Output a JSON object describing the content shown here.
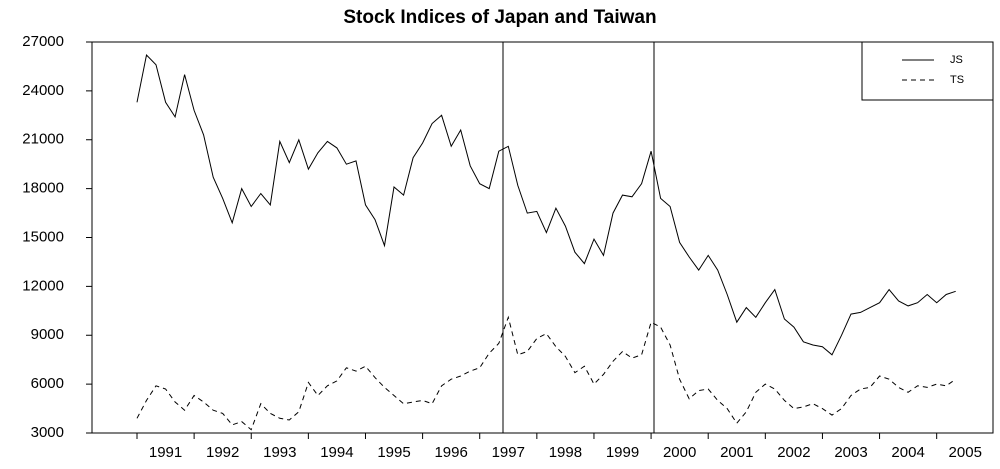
{
  "chart_data": {
    "type": "line",
    "title": "Stock Indices of Japan and Taiwan",
    "categories": [
      "1991",
      null,
      null,
      null,
      null,
      null,
      "1992",
      null,
      null,
      null,
      null,
      null,
      "1993",
      null,
      null,
      null,
      null,
      null,
      "1994",
      null,
      null,
      null,
      null,
      null,
      "1995",
      null,
      null,
      null,
      null,
      null,
      "1996",
      null,
      null,
      null,
      null,
      null,
      "1997",
      null,
      null,
      null,
      null,
      null,
      "1998",
      null,
      null,
      null,
      null,
      null,
      "1999",
      null,
      null,
      null,
      null,
      null,
      "2000",
      null,
      null,
      null,
      null,
      null,
      "2001",
      null,
      null,
      null,
      null,
      null,
      "2002",
      null,
      null,
      null,
      null,
      null,
      "2003",
      null,
      null,
      null,
      null,
      null,
      "2004",
      null,
      null,
      null,
      null,
      null,
      "2005",
      null,
      null
    ],
    "series": [
      {
        "name": "JS",
        "color": "#000000",
        "line_style": "solid",
        "values": [
          23300,
          26200,
          25600,
          23300,
          22400,
          25000,
          22800,
          21300,
          18700,
          17400,
          15900,
          18000,
          16900,
          17700,
          17000,
          20900,
          19600,
          21000,
          19200,
          20200,
          20900,
          20500,
          19500,
          19700,
          17000,
          16100,
          14500,
          18100,
          17600,
          19900,
          20800,
          22000,
          22500,
          20600,
          21600,
          19400,
          18300,
          18000,
          20300,
          20600,
          18200,
          16500,
          16600,
          15300,
          16800,
          15700,
          14100,
          13400,
          14900,
          13900,
          16500,
          17600,
          17500,
          18300,
          20300,
          17400,
          16900,
          14700,
          13800,
          13000,
          13900,
          13000,
          11500,
          9800,
          10700,
          10100,
          11000,
          11800,
          10000,
          9500,
          8600,
          8400,
          8300,
          7800,
          9000,
          10300,
          10400,
          10700,
          11000,
          11800,
          11100,
          10800,
          11000,
          11500,
          11000,
          11500,
          11700
        ]
      },
      {
        "name": "TS",
        "color": "#000000",
        "line_style": "dashed",
        "values": [
          3900,
          5000,
          5900,
          5700,
          4900,
          4400,
          5300,
          4900,
          4400,
          4200,
          3500,
          3700,
          3200,
          4800,
          4200,
          3900,
          3800,
          4300,
          6100,
          5300,
          5900,
          6200,
          7000,
          6800,
          7100,
          6400,
          5800,
          5300,
          4800,
          4900,
          5000,
          4800,
          5900,
          6300,
          6500,
          6800,
          7000,
          7900,
          8500,
          10100,
          7800,
          8000,
          8800,
          9100,
          8300,
          7700,
          6700,
          7100,
          6000,
          6600,
          7400,
          8000,
          7600,
          7800,
          9800,
          9500,
          8400,
          6300,
          5100,
          5600,
          5700,
          5000,
          4500,
          3600,
          4300,
          5500,
          6000,
          5700,
          5000,
          4500,
          4600,
          4800,
          4500,
          4100,
          4500,
          5300,
          5700,
          5800,
          6500,
          6300,
          5800,
          5500,
          5900,
          5800,
          6000,
          5900,
          6300
        ]
      }
    ],
    "ylim": [
      3000,
      27000
    ],
    "yticks": [
      3000,
      6000,
      9000,
      12000,
      15000,
      18000,
      21000,
      24000,
      27000
    ],
    "grid": false,
    "legend": "upper right"
  }
}
